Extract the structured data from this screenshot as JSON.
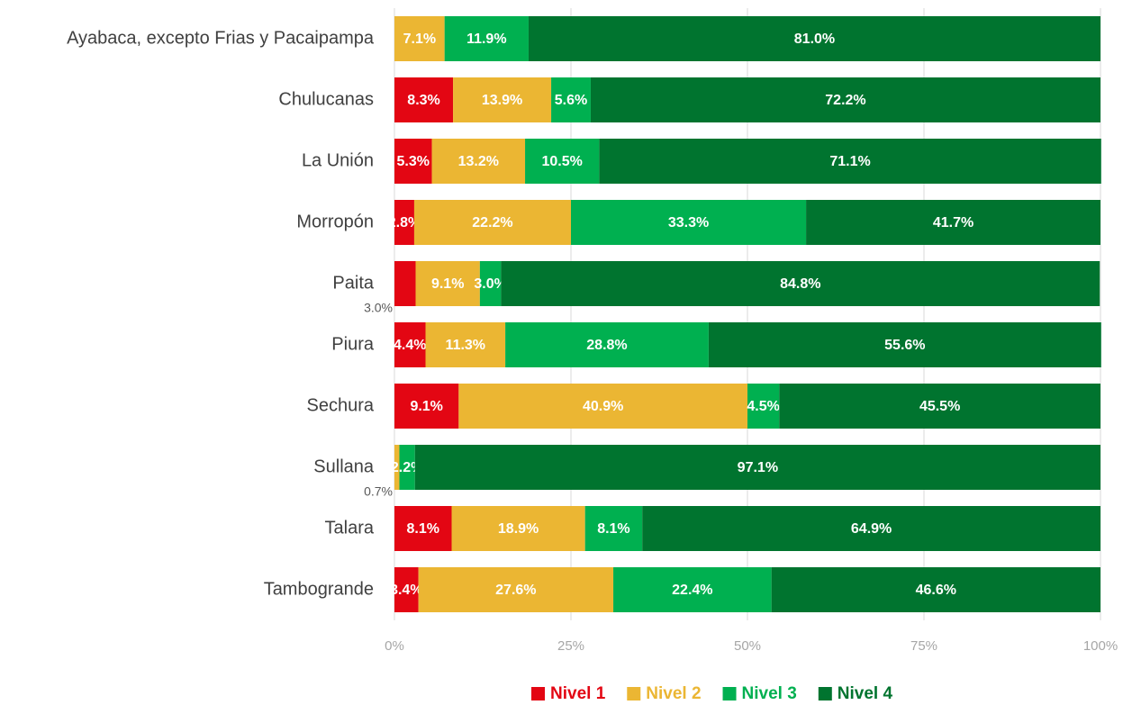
{
  "chart_data": {
    "type": "stacked-bar-horizontal",
    "categories": [
      "Ayabaca, excepto Frias y Pacaipampa",
      "Chulucanas",
      "La Unión",
      "Morropón",
      "Paita",
      "Piura",
      "Sechura",
      "Sullana",
      "Talara",
      "Tambogrande"
    ],
    "series": [
      {
        "name": "Nivel 1",
        "color": "#e30613",
        "values": [
          null,
          8.3,
          5.3,
          2.8,
          3.0,
          4.4,
          9.1,
          null,
          8.1,
          3.4
        ],
        "value_labels": [
          null,
          "8.3%",
          "5.3%",
          "2.8%",
          "3.0%",
          "4.4%",
          "9.1%",
          null,
          "8.1%",
          "3.4%"
        ]
      },
      {
        "name": "Nivel 2",
        "color": "#ebb633",
        "values": [
          7.1,
          13.9,
          13.2,
          22.2,
          9.1,
          11.3,
          40.9,
          0.7,
          18.9,
          27.6
        ],
        "value_labels": [
          "7.1%",
          "13.9%",
          "13.2%",
          "22.2%",
          "9.1%",
          "11.3%",
          "40.9%",
          "0.7%",
          "18.9%",
          "27.6%"
        ]
      },
      {
        "name": "Nivel 3",
        "color": "#00b050",
        "values": [
          11.9,
          5.6,
          10.5,
          33.3,
          3.0,
          28.8,
          4.5,
          2.2,
          8.1,
          22.4
        ],
        "value_labels": [
          "11.9%",
          "5.6%",
          "10.5%",
          "33.3%",
          "3.0%",
          "28.8%",
          "4.5%",
          "2.2%",
          "8.1%",
          "22.4%"
        ]
      },
      {
        "name": "Nivel 4",
        "color": "#00742f",
        "values": [
          81.0,
          72.2,
          71.1,
          41.7,
          84.8,
          55.6,
          45.5,
          97.1,
          64.9,
          46.6
        ],
        "value_labels": [
          "81.0%",
          "72.2%",
          "71.1%",
          "41.7%",
          "84.8%",
          "55.6%",
          "45.5%",
          "97.1%",
          "64.9%",
          "46.6%"
        ]
      }
    ],
    "xlim": [
      0,
      100
    ],
    "xticks": [
      {
        "value": 0,
        "label": "0%"
      },
      {
        "value": 25,
        "label": "25%"
      },
      {
        "value": 50,
        "label": "50%"
      },
      {
        "value": 75,
        "label": "75%"
      },
      {
        "value": 100,
        "label": "100%"
      }
    ],
    "grid": true,
    "legend": "bottom"
  }
}
